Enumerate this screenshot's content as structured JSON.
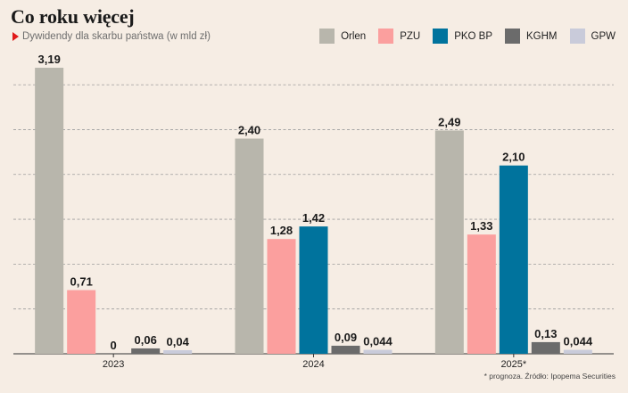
{
  "title": "Co roku więcej",
  "subtitle": "Dywidendy dla skarbu państwa (w mld zł)",
  "footnote": "* prognoza. Źródło: Ipopema Securities",
  "chart_data": {
    "type": "bar",
    "title": "Co roku więcej",
    "subtitle": "Dywidendy dla skarbu państwa (w mld zł)",
    "categories": [
      "2023",
      "2024",
      "2025*"
    ],
    "ylim": [
      0,
      3.25
    ],
    "grid": true,
    "legend_position": "top-right",
    "series": [
      {
        "name": "Orlen",
        "color": "#b8b6ac",
        "values": [
          3.19,
          2.4,
          2.49
        ],
        "labels": [
          "3,19",
          "2,40",
          "2,49"
        ]
      },
      {
        "name": "PZU",
        "color": "#fb9f9e",
        "values": [
          0.71,
          1.28,
          1.33
        ],
        "labels": [
          "0,71",
          "1,28",
          "1,33"
        ]
      },
      {
        "name": "PKO BP",
        "color": "#00739d",
        "values": [
          0,
          1.42,
          2.1
        ],
        "labels": [
          "0",
          "1,42",
          "2,10"
        ]
      },
      {
        "name": "KGHM",
        "color": "#6b6b6b",
        "values": [
          0.06,
          0.09,
          0.13
        ],
        "labels": [
          "0,06",
          "0,09",
          "0,13"
        ]
      },
      {
        "name": "GPW",
        "color": "#c9cbda",
        "values": [
          0.04,
          0.044,
          0.044
        ],
        "labels": [
          "0,04",
          "0,044",
          "0,044"
        ]
      }
    ]
  }
}
